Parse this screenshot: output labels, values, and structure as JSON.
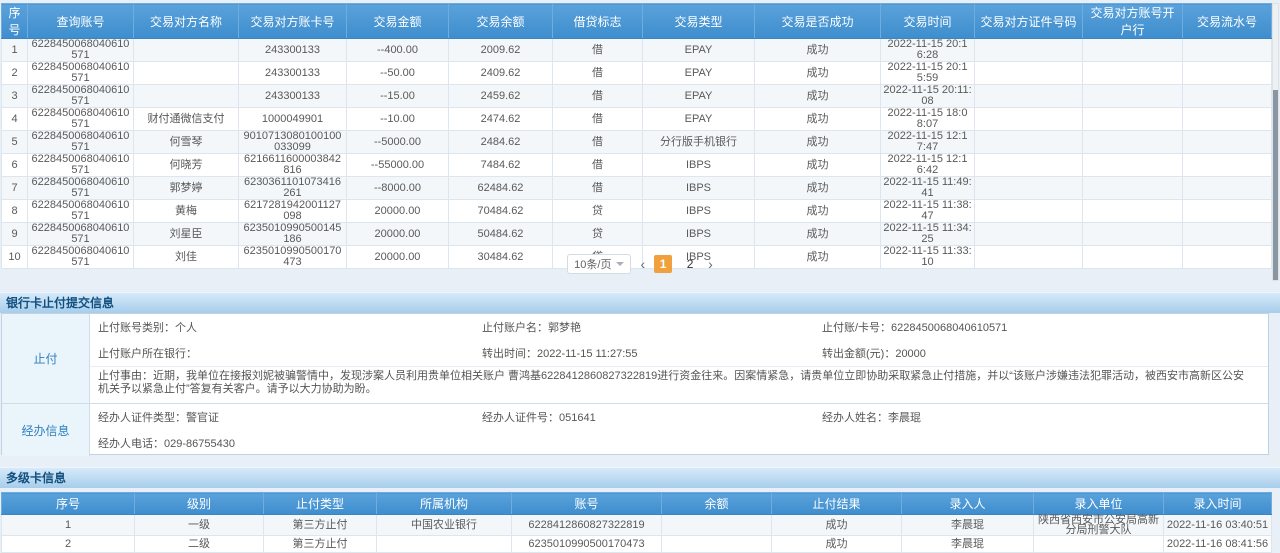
{
  "colors": {
    "header_blue": "#4a97d6",
    "section_bar_blue": "#b8d8f1",
    "active_page_orange": "#f0a03c",
    "label_blue": "#2e7fc0"
  },
  "transactions": {
    "headers": [
      "序号",
      "查询账号",
      "交易对方名称",
      "交易对方账卡号",
      "交易金额",
      "交易余额",
      "借贷标志",
      "交易类型",
      "交易是否成功",
      "交易时间",
      "交易对方证件号码",
      "交易对方账号开户行",
      "交易流水号"
    ],
    "rows": [
      [
        "1",
        "6228450068040610571",
        "",
        "243300133",
        "--400.00",
        "2009.62",
        "借",
        "EPAY",
        "成功",
        "2022-11-15 20:16:28",
        "",
        "",
        ""
      ],
      [
        "2",
        "6228450068040610571",
        "",
        "243300133",
        "--50.00",
        "2409.62",
        "借",
        "EPAY",
        "成功",
        "2022-11-15 20:15:59",
        "",
        "",
        ""
      ],
      [
        "3",
        "6228450068040610571",
        "",
        "243300133",
        "--15.00",
        "2459.62",
        "借",
        "EPAY",
        "成功",
        "2022-11-15 20:11:08",
        "",
        "",
        ""
      ],
      [
        "4",
        "6228450068040610571",
        "财付通微信支付",
        "1000049901",
        "--10.00",
        "2474.62",
        "借",
        "EPAY",
        "成功",
        "2022-11-15 18:08:07",
        "",
        "",
        ""
      ],
      [
        "5",
        "6228450068040610571",
        "何雪琴",
        "9010713080100100033099",
        "--5000.00",
        "2484.62",
        "借",
        "分行版手机银行",
        "成功",
        "2022-11-15 12:17:47",
        "",
        "",
        ""
      ],
      [
        "6",
        "6228450068040610571",
        "何晓芳",
        "6216611600003842816",
        "--55000.00",
        "7484.62",
        "借",
        "IBPS",
        "成功",
        "2022-11-15 12:16:42",
        "",
        "",
        ""
      ],
      [
        "7",
        "6228450068040610571",
        "郭梦婷",
        "6230361101073416261",
        "--8000.00",
        "62484.62",
        "借",
        "IBPS",
        "成功",
        "2022-11-15 11:49:41",
        "",
        "",
        ""
      ],
      [
        "8",
        "6228450068040610571",
        "黄梅",
        "6217281942001127098",
        "20000.00",
        "70484.62",
        "贷",
        "IBPS",
        "成功",
        "2022-11-15 11:38:47",
        "",
        "",
        ""
      ],
      [
        "9",
        "6228450068040610571",
        "刘星臣",
        "6235010990500145186",
        "20000.00",
        "50484.62",
        "贷",
        "IBPS",
        "成功",
        "2022-11-15 11:34:25",
        "",
        "",
        ""
      ],
      [
        "10",
        "6228450068040610571",
        "刘佳",
        "6235010990500170473",
        "20000.00",
        "30484.62",
        "贷",
        "IBPS",
        "成功",
        "2022-11-15 11:33:10",
        "",
        "",
        ""
      ]
    ]
  },
  "pagination": {
    "page_size": "10条/页",
    "prev_icon": "‹",
    "next_icon": "›",
    "pages": [
      "1",
      "2"
    ],
    "active_page": "1"
  },
  "stop_payment": {
    "title": "银行卡止付提交信息",
    "side_label_1": "止付",
    "row1": [
      "止付账号类别：个人",
      "止付账户名：郭梦艳",
      "止付账/卡号：6228450068040610571"
    ],
    "row2": [
      "止付账户所在银行：",
      "转出时间：2022-11-15 11:27:55",
      "转出金额(元)：20000"
    ],
    "reason": "止付事由：近期，我单位在接报刘妮被骗警情中，发现涉案人员利用贵单位相关账户 曹鸿基6228412860827322819进行资金往来。因案情紧急，请贵单位立即协助采取紧急止付措施，并以“该账户涉嫌违法犯罪活动，被西安市高新区公安机关予以紧急止付”答复有关客户。请予以大力协助为盼。",
    "side_label_2": "经办信息",
    "row3": [
      "经办人证件类型：警官证",
      "经办人证件号：051641",
      "经办人姓名：李晨琨"
    ],
    "row4": [
      "经办人电话：029-86755430"
    ]
  },
  "multi_card": {
    "title": "多级卡信息",
    "headers": [
      "序号",
      "级别",
      "止付类型",
      "所属机构",
      "账号",
      "余额",
      "止付结果",
      "录入人",
      "录入单位",
      "录入时间"
    ],
    "rows": [
      [
        "1",
        "一级",
        "第三方止付",
        "中国农业银行",
        "6228412860827322819",
        "",
        "成功",
        "李晨琨",
        "陕西省西安市公安局高新分局刑警大队",
        "2022-11-16 03:40:51"
      ],
      [
        "2",
        "二级",
        "第三方止付",
        "",
        "6235010990500170473",
        "",
        "成功",
        "李晨琨",
        "",
        "2022-11-16 08:41:56"
      ]
    ]
  }
}
